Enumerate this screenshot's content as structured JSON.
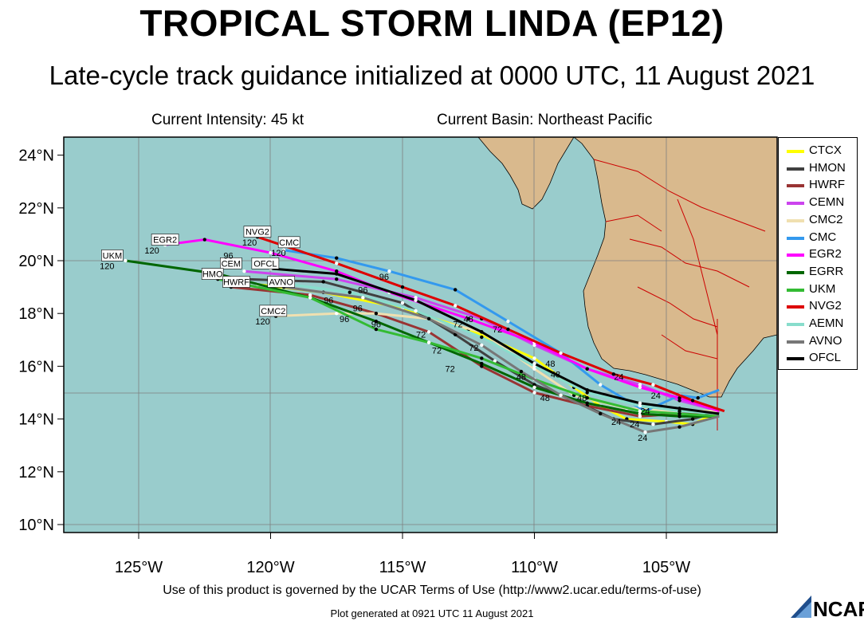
{
  "title": "TROPICAL STORM LINDA (EP12)",
  "subtitle": "Late-cycle track guidance initialized at 0000 UTC, 11 August 2021",
  "current_intensity": "Current Intensity: 45 kt",
  "current_basin": "Current Basin: Northeast Pacific",
  "terms": "Use of this product is governed by the UCAR Terms of Use (http://www2.ucar.edu/terms-of-use)",
  "generated": "Plot generated at 0921 UTC   11 August 2021",
  "logo_text": "NCAR",
  "axes": {
    "lon_ticks": [
      "125°W",
      "120°W",
      "115°W",
      "110°W",
      "105°W"
    ],
    "lat_ticks": [
      "24°N",
      "22°N",
      "20°N",
      "18°N",
      "16°N",
      "14°N",
      "12°N",
      "10°N"
    ]
  },
  "colors": {
    "ocean": "#99cccc",
    "land": "#d9b98d",
    "border": "#cc0000",
    "grid": "#7f7f7f"
  },
  "tracks": [
    {
      "name": "CTCX",
      "color": "#ffff00",
      "points": [
        [
          -103.0,
          14.3
        ],
        [
          -104.0,
          13.8
        ],
        [
          -105.0,
          13.9
        ],
        [
          -106.5,
          14.0
        ],
        [
          -107.5,
          14.5
        ],
        [
          -108.5,
          15.2
        ],
        [
          -110.0,
          16.3
        ],
        [
          -112.5,
          17.4
        ],
        [
          -115.0,
          18.2
        ],
        [
          -118.0,
          18.8
        ],
        [
          -120.5,
          19.1
        ]
      ]
    },
    {
      "name": "HMON",
      "color": "#404040",
      "points": [
        [
          -103.0,
          14.3
        ],
        [
          -104.0,
          14.0
        ],
        [
          -105.5,
          13.8
        ],
        [
          -107.0,
          14.0
        ],
        [
          -108.5,
          14.7
        ],
        [
          -110.0,
          15.3
        ],
        [
          -111.5,
          16.2
        ],
        [
          -113.0,
          17.2
        ],
        [
          -115.0,
          18.4
        ],
        [
          -118.0,
          19.2
        ],
        [
          -121.0,
          19.3
        ]
      ]
    },
    {
      "name": "HWRF",
      "color": "#993333",
      "points": [
        [
          -103.0,
          14.3
        ],
        [
          -104.5,
          14.2
        ],
        [
          -106.0,
          14.1
        ],
        [
          -108.0,
          14.5
        ],
        [
          -110.0,
          15.0
        ],
        [
          -112.0,
          16.0
        ],
        [
          -114.0,
          17.3
        ],
        [
          -116.0,
          18.0
        ],
        [
          -118.5,
          18.7
        ],
        [
          -121.5,
          19.0
        ]
      ]
    },
    {
      "name": "CEMN",
      "color": "#cc44ee",
      "points": [
        [
          -103.0,
          14.3
        ],
        [
          -104.5,
          14.7
        ],
        [
          -106.0,
          15.3
        ],
        [
          -108.0,
          15.9
        ],
        [
          -110.0,
          16.8
        ],
        [
          -112.0,
          17.8
        ],
        [
          -114.5,
          18.6
        ],
        [
          -117.5,
          19.3
        ],
        [
          -121.0,
          19.6
        ]
      ]
    },
    {
      "name": "CMC2",
      "color": "#f0e0b0",
      "points": [
        [
          -103.0,
          14.3
        ],
        [
          -104.5,
          14.3
        ],
        [
          -106.5,
          14.4
        ],
        [
          -108.5,
          14.9
        ],
        [
          -110.0,
          15.9
        ],
        [
          -112.0,
          17.3
        ],
        [
          -114.0,
          17.8
        ],
        [
          -116.0,
          18.0
        ],
        [
          -117.5,
          18.0
        ],
        [
          -119.8,
          17.9
        ]
      ]
    },
    {
      "name": "CMC",
      "color": "#3399ee",
      "points": [
        [
          -103.0,
          15.1
        ],
        [
          -103.8,
          14.8
        ],
        [
          -104.5,
          14.9
        ],
        [
          -105.8,
          14.3
        ],
        [
          -107.5,
          15.3
        ],
        [
          -109.0,
          16.5
        ],
        [
          -111.0,
          17.7
        ],
        [
          -113.0,
          18.9
        ],
        [
          -115.5,
          19.6
        ],
        [
          -117.5,
          20.1
        ],
        [
          -119.5,
          20.4
        ]
      ]
    },
    {
      "name": "EGR2",
      "color": "#ff00ff",
      "points": [
        [
          -103.0,
          14.3
        ],
        [
          -104.5,
          14.8
        ],
        [
          -106.0,
          15.2
        ],
        [
          -108.0,
          15.9
        ],
        [
          -110.0,
          16.9
        ],
        [
          -112.5,
          17.8
        ],
        [
          -115.5,
          18.8
        ],
        [
          -117.5,
          19.6
        ],
        [
          -120.0,
          20.3
        ],
        [
          -122.5,
          20.8
        ],
        [
          -124.0,
          20.6
        ]
      ]
    },
    {
      "name": "EGRR",
      "color": "#006600",
      "points": [
        [
          -103.0,
          14.1
        ],
        [
          -104.5,
          14.1
        ],
        [
          -106.0,
          14.2
        ],
        [
          -108.0,
          14.6
        ],
        [
          -110.0,
          15.2
        ],
        [
          -112.0,
          16.1
        ],
        [
          -114.0,
          16.9
        ],
        [
          -116.0,
          17.7
        ],
        [
          -118.5,
          18.6
        ],
        [
          -122.0,
          19.5
        ],
        [
          -125.5,
          20.0
        ]
      ]
    },
    {
      "name": "UKM",
      "color": "#33bb33",
      "points": [
        [
          -103.0,
          14.1
        ],
        [
          -104.5,
          14.2
        ],
        [
          -106.0,
          14.3
        ],
        [
          -108.0,
          14.8
        ],
        [
          -110.0,
          15.5
        ],
        [
          -112.0,
          16.3
        ],
        [
          -114.0,
          16.9
        ],
        [
          -116.0,
          17.4
        ],
        [
          -118.5,
          18.6
        ],
        [
          -122.0,
          19.3
        ]
      ]
    },
    {
      "name": "NVG2",
      "color": "#dd0000",
      "points": [
        [
          -102.8,
          14.3
        ],
        [
          -104.0,
          14.7
        ],
        [
          -105.5,
          15.3
        ],
        [
          -107.0,
          15.7
        ],
        [
          -109.0,
          16.5
        ],
        [
          -111.0,
          17.4
        ],
        [
          -113.0,
          18.3
        ],
        [
          -115.0,
          19.0
        ],
        [
          -117.5,
          19.9
        ],
        [
          -120.5,
          20.9
        ]
      ]
    },
    {
      "name": "AEMN",
      "color": "#88ddcc",
      "points": [
        [
          -103.0,
          14.2
        ],
        [
          -104.5,
          14.3
        ],
        [
          -106.0,
          14.5
        ],
        [
          -108.0,
          15.0
        ],
        [
          -110.0,
          16.0
        ],
        [
          -112.0,
          17.1
        ],
        [
          -114.5,
          18.1
        ],
        [
          -117.0,
          18.8
        ],
        [
          -120.0,
          19.2
        ]
      ]
    },
    {
      "name": "AVNO",
      "color": "#777777",
      "points": [
        [
          -103.0,
          14.1
        ],
        [
          -104.5,
          13.7
        ],
        [
          -105.8,
          13.5
        ],
        [
          -107.5,
          14.2
        ],
        [
          -109.0,
          14.9
        ],
        [
          -110.5,
          15.8
        ],
        [
          -112.0,
          16.8
        ],
        [
          -114.0,
          17.8
        ],
        [
          -116.5,
          18.6
        ],
        [
          -119.5,
          19.0
        ]
      ]
    },
    {
      "name": "OFCL",
      "color": "#000000",
      "points": [
        [
          -103.0,
          14.2
        ],
        [
          -104.5,
          14.4
        ],
        [
          -106.0,
          14.6
        ],
        [
          -108.0,
          15.1
        ],
        [
          -110.0,
          16.1
        ],
        [
          -112.0,
          17.3
        ],
        [
          -114.5,
          18.5
        ],
        [
          -117.5,
          19.5
        ],
        [
          -120.0,
          19.7
        ]
      ]
    }
  ],
  "labels": [
    {
      "text": "UKM",
      "lon": -126.0,
      "lat": 20.2,
      "boxed": true
    },
    {
      "text": "120",
      "lon": -126.2,
      "lat": 19.8,
      "boxed": false
    },
    {
      "text": "EGR2",
      "lon": -124.0,
      "lat": 20.8,
      "boxed": true
    },
    {
      "text": "120",
      "lon": -124.5,
      "lat": 20.4,
      "boxed": false
    },
    {
      "text": "NVG2",
      "lon": -120.5,
      "lat": 21.1,
      "boxed": true
    },
    {
      "text": "120",
      "lon": -120.8,
      "lat": 20.7,
      "boxed": false
    },
    {
      "text": "CMC",
      "lon": -119.3,
      "lat": 20.7,
      "boxed": true
    },
    {
      "text": "120",
      "lon": -119.7,
      "lat": 20.3,
      "boxed": false
    },
    {
      "text": "CEM",
      "lon": -121.5,
      "lat": 19.9,
      "boxed": true
    },
    {
      "text": "OFCL",
      "lon": -120.2,
      "lat": 19.9,
      "boxed": true
    },
    {
      "text": "HMO",
      "lon": -122.2,
      "lat": 19.5,
      "boxed": true
    },
    {
      "text": "HWRF",
      "lon": -121.3,
      "lat": 19.2,
      "boxed": true
    },
    {
      "text": "AVNO",
      "lon": -119.6,
      "lat": 19.2,
      "boxed": true
    },
    {
      "text": "CMC2",
      "lon": -119.9,
      "lat": 18.1,
      "boxed": true
    },
    {
      "text": "120",
      "lon": -120.3,
      "lat": 17.7,
      "boxed": false
    },
    {
      "text": "96",
      "lon": -121.6,
      "lat": 20.2,
      "boxed": false
    },
    {
      "text": "96",
      "lon": -116.5,
      "lat": 18.9,
      "boxed": false
    },
    {
      "text": "96",
      "lon": -115.7,
      "lat": 19.4,
      "boxed": false
    },
    {
      "text": "96",
      "lon": -116.7,
      "lat": 18.2,
      "boxed": false
    },
    {
      "text": "96",
      "lon": -116.0,
      "lat": 17.6,
      "boxed": false
    },
    {
      "text": "96",
      "lon": -117.8,
      "lat": 18.5,
      "boxed": false
    },
    {
      "text": "96",
      "lon": -117.2,
      "lat": 17.8,
      "boxed": false
    },
    {
      "text": "72",
      "lon": -114.3,
      "lat": 17.2,
      "boxed": false
    },
    {
      "text": "72",
      "lon": -113.7,
      "lat": 16.6,
      "boxed": false
    },
    {
      "text": "72",
      "lon": -112.9,
      "lat": 17.6,
      "boxed": false
    },
    {
      "text": "72",
      "lon": -112.3,
      "lat": 16.7,
      "boxed": false
    },
    {
      "text": "72",
      "lon": -111.4,
      "lat": 17.4,
      "boxed": false
    },
    {
      "text": "72",
      "lon": -113.2,
      "lat": 15.9,
      "boxed": false
    },
    {
      "text": "48",
      "lon": -112.5,
      "lat": 17.8,
      "boxed": false
    },
    {
      "text": "48",
      "lon": -110.5,
      "lat": 15.6,
      "boxed": false
    },
    {
      "text": "48",
      "lon": -109.4,
      "lat": 16.1,
      "boxed": false
    },
    {
      "text": "48",
      "lon": -109.2,
      "lat": 15.7,
      "boxed": false
    },
    {
      "text": "48",
      "lon": -109.6,
      "lat": 14.8,
      "boxed": false
    },
    {
      "text": "48",
      "lon": -108.2,
      "lat": 14.8,
      "boxed": false
    },
    {
      "text": "24",
      "lon": -106.8,
      "lat": 15.6,
      "boxed": false
    },
    {
      "text": "24",
      "lon": -105.4,
      "lat": 14.9,
      "boxed": false
    },
    {
      "text": "24",
      "lon": -105.8,
      "lat": 14.3,
      "boxed": false
    },
    {
      "text": "24",
      "lon": -106.2,
      "lat": 13.8,
      "boxed": false
    },
    {
      "text": "24",
      "lon": -106.9,
      "lat": 13.9,
      "boxed": false
    },
    {
      "text": "24",
      "lon": -105.9,
      "lat": 13.3,
      "boxed": false
    }
  ]
}
